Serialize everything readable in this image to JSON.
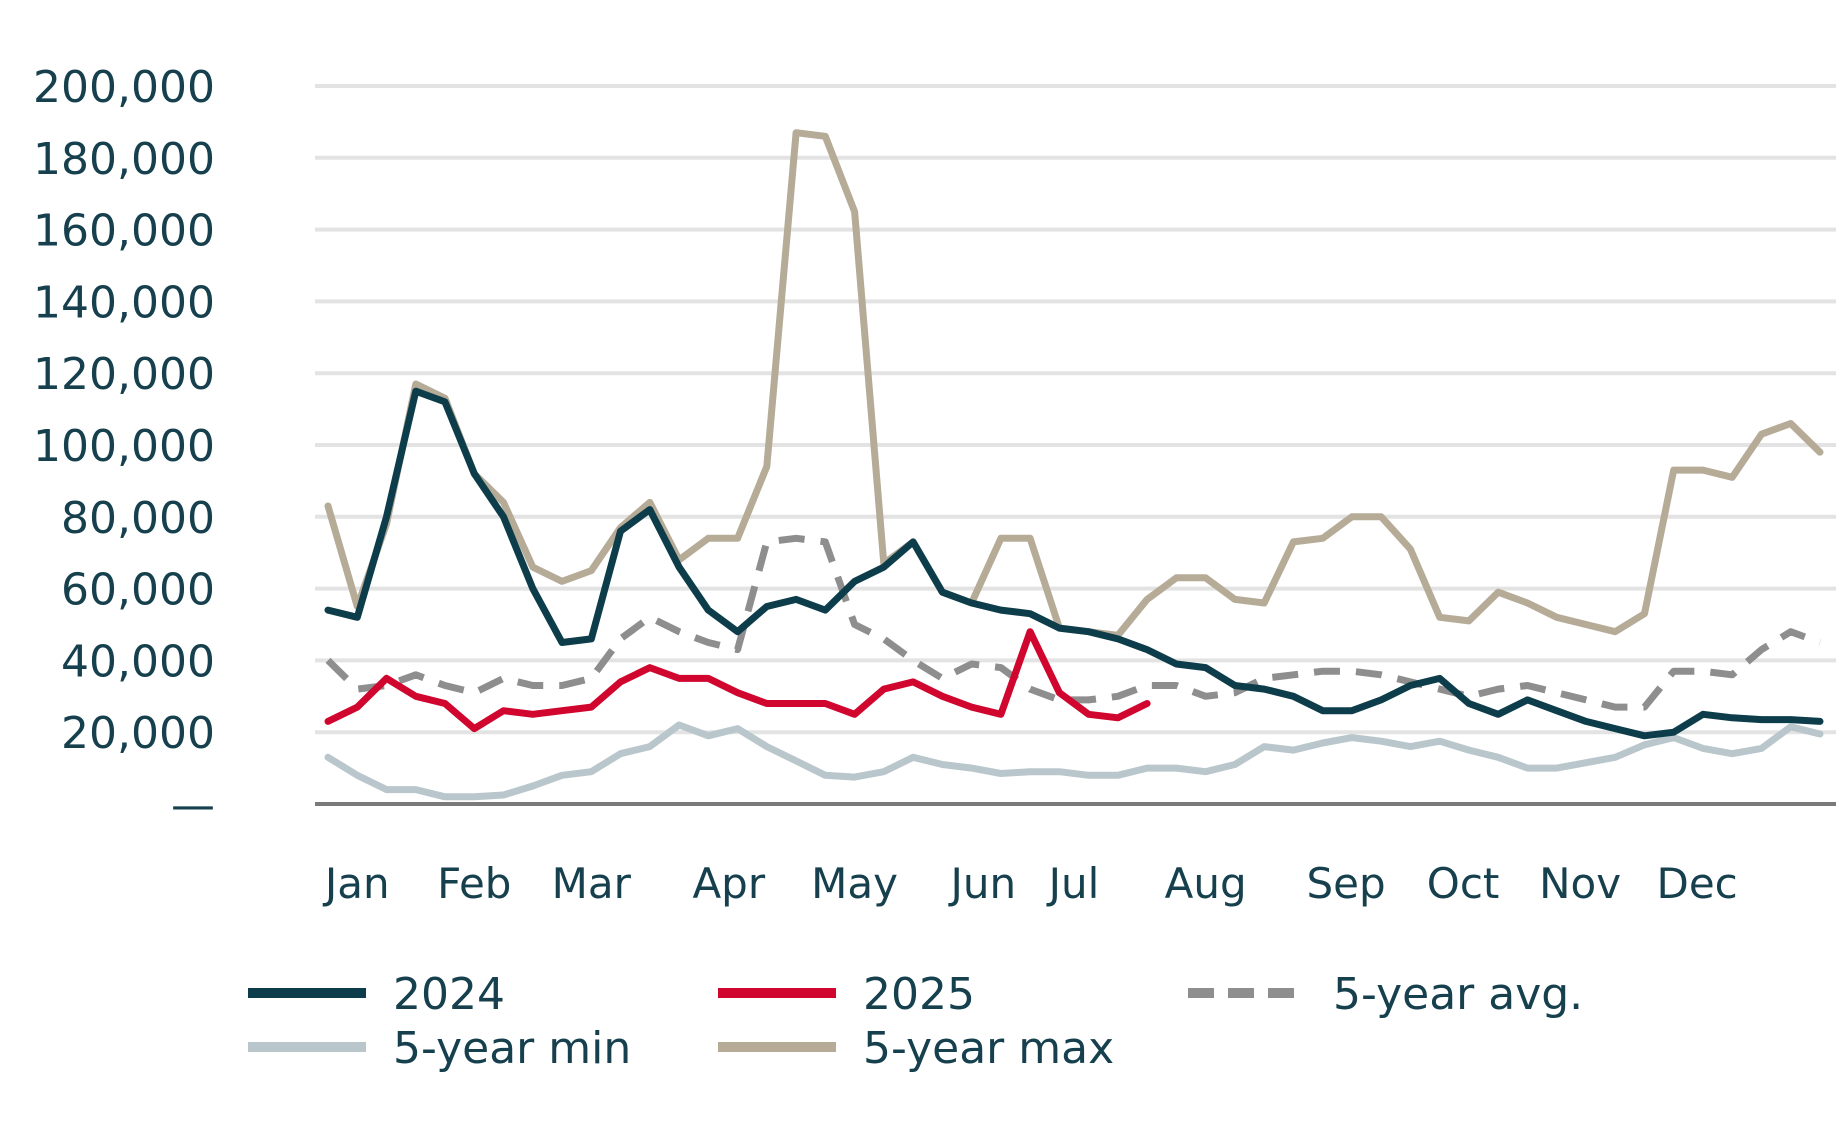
{
  "chart_data": {
    "type": "line",
    "title": "",
    "xlabel": "",
    "ylabel": "",
    "ylim": [
      0,
      200000
    ],
    "y_ticks": [
      0,
      20000,
      40000,
      60000,
      80000,
      100000,
      120000,
      140000,
      160000,
      180000,
      200000
    ],
    "y_tick_labels": [
      "—",
      "20,000",
      "40,000",
      "60,000",
      "80,000",
      "100,000",
      "120,000",
      "140,000",
      "160,000",
      "180,000",
      "200,000"
    ],
    "x_unit": "week",
    "xlim": [
      1,
      52
    ],
    "month_labels": [
      "Jan",
      "Feb",
      "Mar",
      "Apr",
      "May",
      "Jun",
      "Jul",
      "Aug",
      "Sep",
      "Oct",
      "Nov",
      "Dec"
    ],
    "month_label_weeks": [
      2.0,
      6.0,
      10.0,
      14.7,
      19.0,
      23.4,
      26.5,
      31.0,
      35.8,
      39.8,
      43.8,
      47.8
    ],
    "grid": true,
    "legend_position": "bottom",
    "series": [
      {
        "name": "2024",
        "color": "#0d3d4a",
        "dash": false,
        "x": [
          1,
          2,
          3,
          4,
          5,
          6,
          7,
          8,
          9,
          10,
          11,
          12,
          13,
          14,
          15,
          16,
          17,
          18,
          19,
          20,
          21,
          22,
          23,
          24,
          25,
          26,
          27,
          28,
          29,
          30,
          31,
          32,
          33,
          34,
          35,
          36,
          37,
          38,
          39,
          40,
          41,
          42,
          43,
          44,
          45,
          46,
          47,
          48,
          49,
          50,
          51,
          52
        ],
        "values": [
          54000,
          52000,
          80000,
          115000,
          112000,
          92000,
          80000,
          60000,
          45000,
          46000,
          76000,
          82000,
          66000,
          54000,
          48000,
          55000,
          57000,
          54000,
          62000,
          66000,
          73000,
          59000,
          56000,
          54000,
          53000,
          49000,
          48000,
          46000,
          43000,
          39000,
          38000,
          33000,
          32000,
          30000,
          26000,
          26000,
          29000,
          33000,
          35000,
          28000,
          25000,
          29000,
          26000,
          23000,
          21000,
          19000,
          20000,
          25000,
          24000,
          23500,
          23500,
          23000
        ]
      },
      {
        "name": "2025",
        "color": "#d0062f",
        "dash": false,
        "x": [
          1,
          2,
          3,
          4,
          5,
          6,
          7,
          8,
          9,
          10,
          11,
          12,
          13,
          14,
          15,
          16,
          17,
          18,
          19,
          20,
          21,
          22,
          23,
          24,
          25,
          26,
          27,
          28,
          29
        ],
        "values": [
          23000,
          27000,
          35000,
          30000,
          28000,
          21000,
          26000,
          25000,
          26000,
          27000,
          34000,
          38000,
          35000,
          35000,
          31000,
          28000,
          28000,
          28000,
          25000,
          32000,
          34000,
          30000,
          27000,
          25000,
          48000,
          31000,
          25000,
          24000,
          28000
        ]
      },
      {
        "name": "5-year avg.",
        "color": "#8e8e8e",
        "dash": true,
        "x": [
          1,
          2,
          3,
          4,
          5,
          6,
          7,
          8,
          9,
          10,
          11,
          12,
          13,
          14,
          15,
          16,
          17,
          18,
          19,
          20,
          21,
          22,
          23,
          24,
          25,
          26,
          27,
          28,
          29,
          30,
          31,
          32,
          33,
          34,
          35,
          36,
          37,
          38,
          39,
          40,
          41,
          42,
          43,
          44,
          45,
          46,
          47,
          48,
          49,
          50,
          51,
          52
        ],
        "values": [
          40000,
          32000,
          33000,
          36000,
          33000,
          31000,
          35000,
          33000,
          33000,
          35000,
          46000,
          52000,
          48000,
          45000,
          43000,
          73000,
          74000,
          73000,
          50000,
          46000,
          40000,
          35000,
          39000,
          38000,
          32000,
          29000,
          29000,
          30000,
          33000,
          33000,
          30000,
          31000,
          35000,
          36000,
          37000,
          37000,
          36000,
          34000,
          32000,
          30000,
          32000,
          33000,
          31000,
          29000,
          27000,
          27000,
          37000,
          37000,
          36000,
          43000,
          48000,
          45000
        ]
      },
      {
        "name": "5-year min",
        "color": "#b9c7cd",
        "dash": false,
        "x": [
          1,
          2,
          3,
          4,
          5,
          6,
          7,
          8,
          9,
          10,
          11,
          12,
          13,
          14,
          15,
          16,
          17,
          18,
          19,
          20,
          21,
          22,
          23,
          24,
          25,
          26,
          27,
          28,
          29,
          30,
          31,
          32,
          33,
          34,
          35,
          36,
          37,
          38,
          39,
          40,
          41,
          42,
          43,
          44,
          45,
          46,
          47,
          48,
          49,
          50,
          51,
          52
        ],
        "values": [
          13000,
          8000,
          4000,
          4000,
          2000,
          2000,
          2500,
          5000,
          8000,
          9000,
          14000,
          16000,
          22000,
          19000,
          21000,
          16000,
          12000,
          8000,
          7500,
          9000,
          13000,
          11000,
          10000,
          8500,
          9000,
          9000,
          8000,
          8000,
          10000,
          10000,
          9000,
          11000,
          16000,
          15000,
          17000,
          18500,
          17500,
          16000,
          17500,
          15000,
          13000,
          10000,
          10000,
          11500,
          13000,
          16500,
          18500,
          15500,
          14000,
          15500,
          21500,
          19500
        ]
      },
      {
        "name": "5-year max",
        "color": "#b5ab97",
        "dash": false,
        "x": [
          1,
          2,
          3,
          4,
          5,
          6,
          7,
          8,
          9,
          10,
          11,
          12,
          13,
          14,
          15,
          16,
          17,
          18,
          19,
          20,
          21,
          22,
          23,
          24,
          25,
          26,
          27,
          28,
          29,
          30,
          31,
          32,
          33,
          34,
          35,
          36,
          37,
          38,
          39,
          40,
          41,
          42,
          43,
          44,
          45,
          46,
          47,
          48,
          49,
          50,
          51,
          52
        ],
        "values": [
          83000,
          55000,
          78000,
          117000,
          113000,
          92000,
          84000,
          66000,
          62000,
          65000,
          77000,
          84000,
          68000,
          74000,
          74000,
          94000,
          187000,
          186000,
          165000,
          67000,
          73000,
          59000,
          56000,
          74000,
          74000,
          49000,
          48000,
          47000,
          57000,
          63000,
          63000,
          57000,
          56000,
          73000,
          74000,
          80000,
          80000,
          71000,
          52000,
          51000,
          59000,
          56000,
          52000,
          50000,
          48000,
          53000,
          93000,
          93000,
          91000,
          103000,
          106000,
          98000
        ]
      }
    ]
  }
}
